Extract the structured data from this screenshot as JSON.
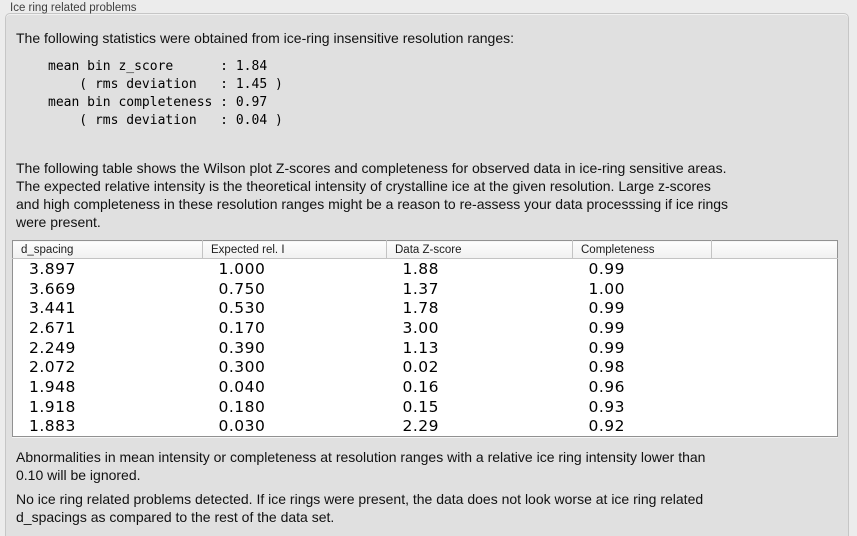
{
  "panel": {
    "title": "Ice ring related problems"
  },
  "intro": {
    "text": "The following statistics were obtained from ice-ring insensitive resolution ranges:"
  },
  "stats_block": {
    "text": "mean bin z_score      : 1.84\n    ( rms deviation   : 1.45 )\nmean bin completeness : 0.97\n    ( rms deviation   : 0.04 )"
  },
  "description": {
    "text": "The following table shows the Wilson plot Z-scores and completeness for observed data in ice-ring sensitive areas.\nThe expected relative intensity is the theoretical intensity of crystalline ice at the given resolution. Large z-scores\nand high completeness in these resolution ranges might be a reason to re-assess your data processsing if ice rings\nwere present."
  },
  "table": {
    "columns": [
      "d_spacing",
      "Expected rel. I",
      "Data Z-score",
      "Completeness",
      ""
    ],
    "rows": [
      [
        "3.897",
        "1.000",
        "1.88",
        "0.99"
      ],
      [
        "3.669",
        "0.750",
        "1.37",
        "1.00"
      ],
      [
        "3.441",
        "0.530",
        "1.78",
        "0.99"
      ],
      [
        "2.671",
        "0.170",
        "3.00",
        "0.99"
      ],
      [
        "2.249",
        "0.390",
        "1.13",
        "0.99"
      ],
      [
        "2.072",
        "0.300",
        "0.02",
        "0.98"
      ],
      [
        "1.948",
        "0.040",
        "0.16",
        "0.96"
      ],
      [
        "1.918",
        "0.180",
        "0.15",
        "0.93"
      ],
      [
        "1.883",
        "0.030",
        "2.29",
        "0.92"
      ]
    ]
  },
  "notes": {
    "ignore_note": "Abnormalities in mean intensity or completeness at resolution ranges with a relative ice ring intensity lower than\n0.10 will be ignored.",
    "conclusion": "No ice ring related problems detected. If ice rings were present, the data does not look worse at ice ring related\nd_spacings as compared to the rest of the data set."
  },
  "colors": {
    "window_bg": "#ececec",
    "panel_bg": "#e0e0e0",
    "table_bg": "#ffffff",
    "table_border": "#919191",
    "text": "#111111"
  }
}
